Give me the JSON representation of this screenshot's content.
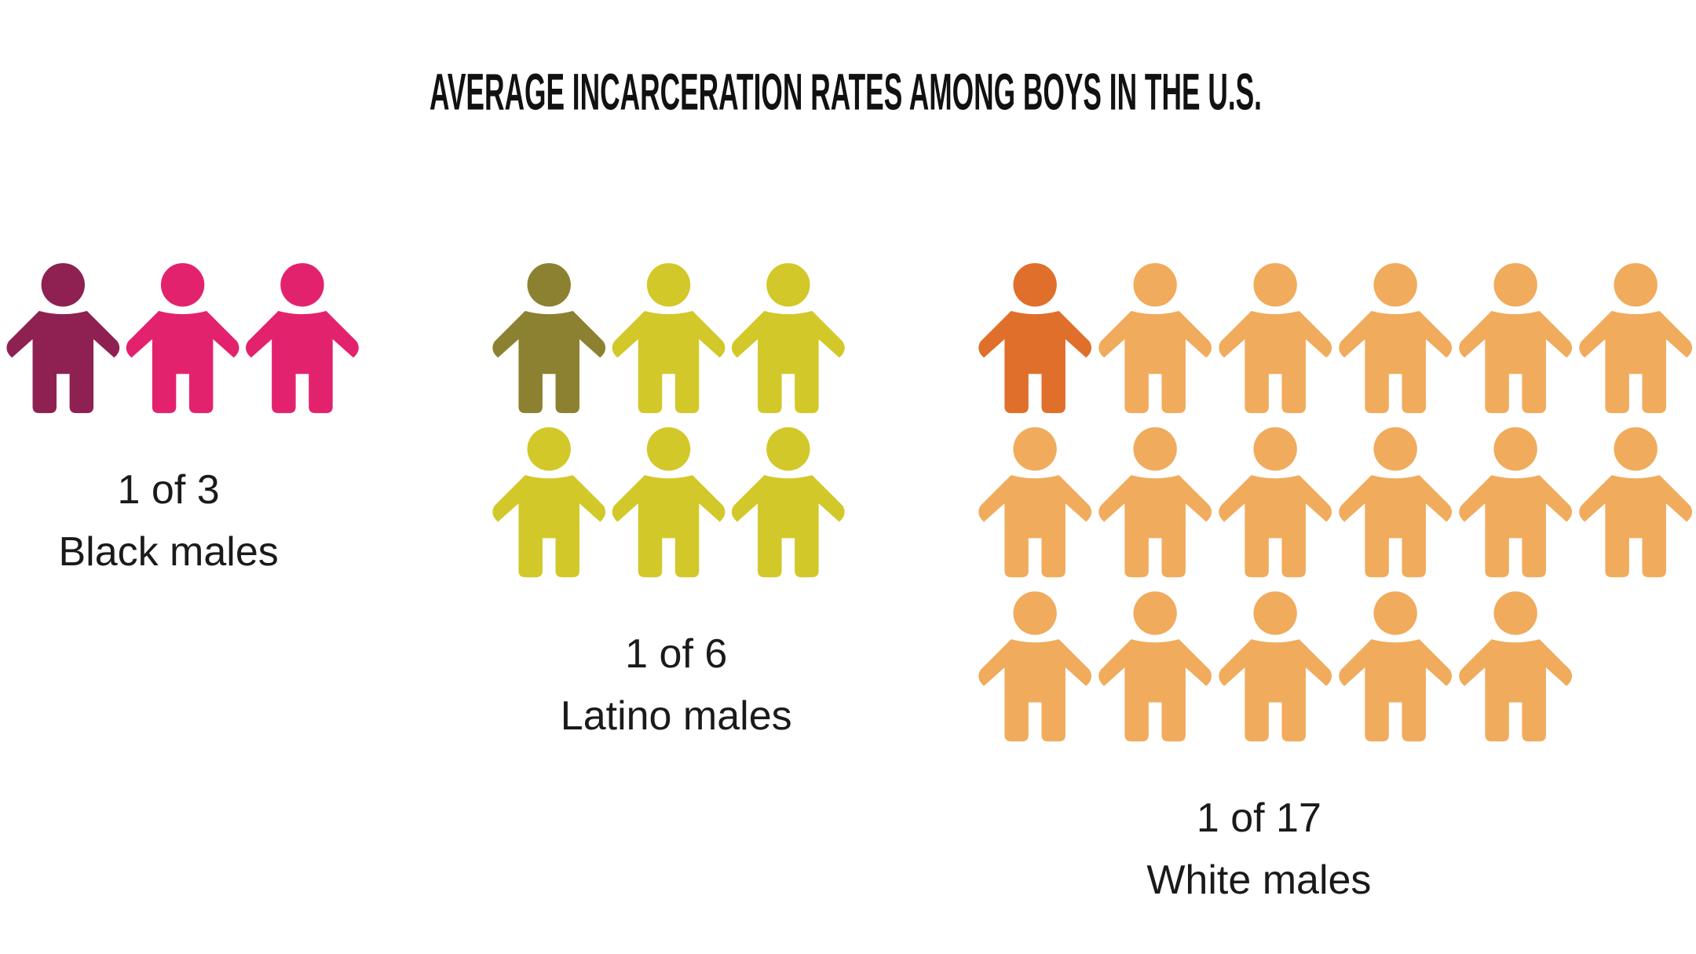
{
  "chart_data": {
    "type": "pictograph",
    "title": "AVERAGE INCARCERATION RATES AMONG BOYS IN THE U.S.",
    "categories": [
      "Black males",
      "Latino males",
      "White males"
    ],
    "values": [
      3,
      6,
      17
    ],
    "value_labels": [
      "1 of 3",
      "1 of 6",
      "1 of 17"
    ],
    "colors": [
      "#e3226e",
      "#d2c829",
      "#f0ab5c"
    ],
    "highlight_colors": [
      "#8e2152",
      "#8c8130",
      "#e06f2b"
    ]
  }
}
